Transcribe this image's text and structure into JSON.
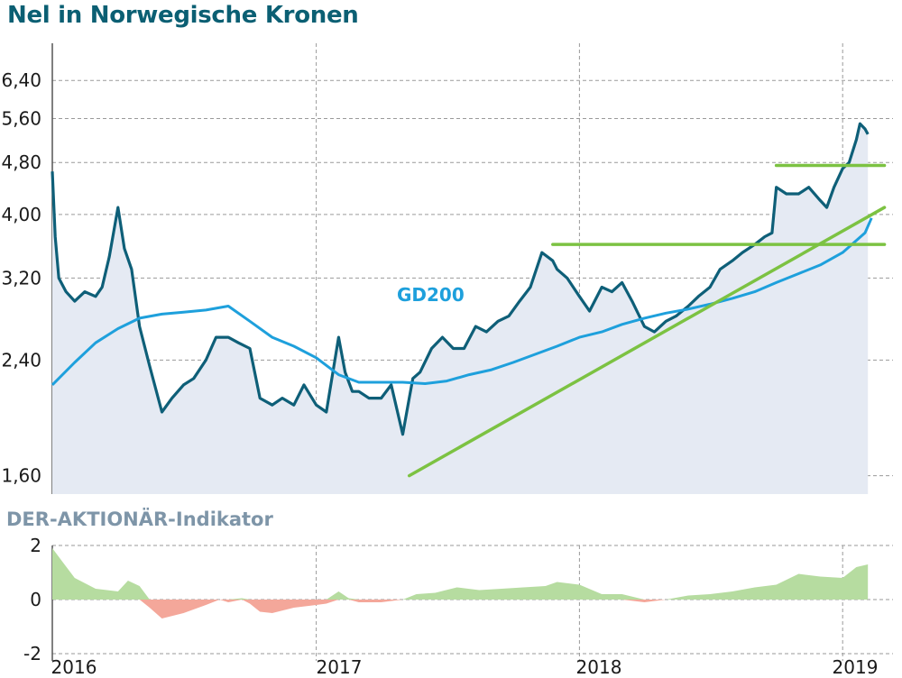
{
  "title": "Nel in Norwegische Kronen",
  "indicator_title": "DER-AKTIONÄR-Indikator",
  "colors": {
    "title": "#0b5f73",
    "price_line": "#0e5f78",
    "price_area": "#e5eaf3",
    "gd200": "#1ea0dc",
    "trend": "#7cc242",
    "indicator_positive": "#b6dca0",
    "indicator_negative": "#f4a79a",
    "grid": "#9a9a9a"
  },
  "chart_data": [
    {
      "type": "line",
      "title": "Nel in Norwegische Kronen",
      "y_scale": "log",
      "ylim": [
        1.5,
        7.2
      ],
      "xlim": [
        "2016-01-01",
        "2019-02-28"
      ],
      "yticks": [
        1.6,
        2.4,
        3.2,
        4.0,
        4.8,
        5.6,
        6.4
      ],
      "ytick_labels": [
        "1,60",
        "2,40",
        "3,20",
        "4,00",
        "4,80",
        "5,60",
        "6,40"
      ],
      "xtick_labels": [
        "2016",
        "2017",
        "2018",
        "2019"
      ],
      "grid": true,
      "annotations": [
        "GD200"
      ],
      "series": [
        {
          "name": "Nel",
          "x": [
            "2016-01-01",
            "2016-01-05",
            "2016-01-10",
            "2016-01-20",
            "2016-02-01",
            "2016-02-15",
            "2016-03-01",
            "2016-03-10",
            "2016-03-20",
            "2016-04-01",
            "2016-04-10",
            "2016-04-20",
            "2016-05-01",
            "2016-05-15",
            "2016-06-01",
            "2016-06-15",
            "2016-07-01",
            "2016-07-15",
            "2016-08-01",
            "2016-08-15",
            "2016-09-01",
            "2016-09-15",
            "2016-10-01",
            "2016-10-15",
            "2016-11-01",
            "2016-11-15",
            "2016-12-01",
            "2016-12-15",
            "2017-01-01",
            "2017-01-15",
            "2017-02-01",
            "2017-02-10",
            "2017-02-20",
            "2017-03-01",
            "2017-03-15",
            "2017-04-01",
            "2017-04-15",
            "2017-05-01",
            "2017-05-10",
            "2017-05-15",
            "2017-05-25",
            "2017-06-10",
            "2017-06-25",
            "2017-07-10",
            "2017-07-25",
            "2017-08-10",
            "2017-08-25",
            "2017-09-10",
            "2017-09-25",
            "2017-10-10",
            "2017-10-25",
            "2017-11-10",
            "2017-11-25",
            "2017-12-01",
            "2017-12-15",
            "2018-01-01",
            "2018-01-15",
            "2018-02-01",
            "2018-02-15",
            "2018-03-01",
            "2018-03-15",
            "2018-04-01",
            "2018-04-15",
            "2018-05-01",
            "2018-05-15",
            "2018-06-01",
            "2018-06-15",
            "2018-07-01",
            "2018-07-15",
            "2018-08-01",
            "2018-08-15",
            "2018-09-01",
            "2018-09-15",
            "2018-09-25",
            "2018-10-01",
            "2018-10-15",
            "2018-11-01",
            "2018-11-15",
            "2018-12-01",
            "2018-12-10",
            "2018-12-20",
            "2019-01-01",
            "2019-01-10",
            "2019-01-20",
            "2019-01-25",
            "2019-02-01",
            "2019-02-05"
          ],
          "values": [
            4.65,
            3.7,
            3.2,
            3.05,
            2.95,
            3.05,
            3.0,
            3.1,
            3.45,
            4.1,
            3.55,
            3.3,
            2.7,
            2.35,
            2.0,
            2.1,
            2.2,
            2.25,
            2.4,
            2.6,
            2.6,
            2.55,
            2.5,
            2.1,
            2.05,
            2.1,
            2.05,
            2.2,
            2.05,
            2.0,
            2.6,
            2.3,
            2.15,
            2.15,
            2.1,
            2.1,
            2.2,
            1.85,
            2.1,
            2.25,
            2.3,
            2.5,
            2.6,
            2.5,
            2.5,
            2.7,
            2.65,
            2.75,
            2.8,
            2.95,
            3.1,
            3.5,
            3.4,
            3.3,
            3.2,
            3.0,
            2.85,
            3.1,
            3.05,
            3.15,
            2.95,
            2.7,
            2.65,
            2.75,
            2.8,
            2.9,
            3.0,
            3.1,
            3.3,
            3.4,
            3.5,
            3.6,
            3.7,
            3.75,
            4.4,
            4.3,
            4.3,
            4.4,
            4.2,
            4.1,
            4.4,
            4.7,
            4.8,
            5.2,
            5.5,
            5.4,
            5.3
          ]
        },
        {
          "name": "GD200",
          "x": [
            "2016-01-01",
            "2016-02-01",
            "2016-03-01",
            "2016-04-01",
            "2016-05-01",
            "2016-06-01",
            "2016-07-01",
            "2016-08-01",
            "2016-09-01",
            "2016-10-01",
            "2016-11-01",
            "2016-12-01",
            "2017-01-01",
            "2017-02-01",
            "2017-03-01",
            "2017-04-01",
            "2017-05-01",
            "2017-06-01",
            "2017-07-01",
            "2017-08-01",
            "2017-09-01",
            "2017-10-01",
            "2017-11-01",
            "2017-12-01",
            "2018-01-01",
            "2018-02-01",
            "2018-03-01",
            "2018-04-01",
            "2018-05-01",
            "2018-06-01",
            "2018-07-01",
            "2018-08-01",
            "2018-09-01",
            "2018-10-01",
            "2018-11-01",
            "2018-12-01",
            "2019-01-01",
            "2019-02-01",
            "2019-02-10"
          ],
          "values": [
            2.2,
            2.38,
            2.55,
            2.68,
            2.78,
            2.82,
            2.84,
            2.86,
            2.9,
            2.75,
            2.6,
            2.52,
            2.42,
            2.28,
            2.22,
            2.22,
            2.22,
            2.21,
            2.23,
            2.28,
            2.32,
            2.38,
            2.45,
            2.52,
            2.6,
            2.65,
            2.72,
            2.78,
            2.83,
            2.87,
            2.92,
            2.98,
            3.05,
            3.15,
            3.25,
            3.35,
            3.5,
            3.75,
            3.95
          ]
        },
        {
          "name": "Trendlinie",
          "x": [
            "2017-05-10",
            "2019-02-28"
          ],
          "values": [
            1.6,
            4.1
          ]
        },
        {
          "name": "Widerstand 1",
          "x": [
            "2017-11-25",
            "2019-02-28"
          ],
          "values": [
            3.6,
            3.6
          ]
        },
        {
          "name": "Widerstand 2",
          "x": [
            "2018-10-01",
            "2019-02-28"
          ],
          "values": [
            4.75,
            4.75
          ]
        }
      ]
    },
    {
      "type": "area",
      "title": "DER-AKTIONÄR-Indikator",
      "ylim": [
        -2,
        2
      ],
      "yticks": [
        -2,
        0,
        2
      ],
      "ytick_labels": [
        "-2",
        "0",
        "2"
      ],
      "xtick_labels": [
        "2016",
        "2017",
        "2018",
        "2019"
      ],
      "grid": true,
      "series": [
        {
          "name": "Indikator",
          "x": [
            "2016-01-01",
            "2016-01-15",
            "2016-02-01",
            "2016-03-01",
            "2016-04-01",
            "2016-04-15",
            "2016-05-01",
            "2016-05-15",
            "2016-06-01",
            "2016-07-01",
            "2016-08-01",
            "2016-08-20",
            "2016-09-01",
            "2016-09-20",
            "2016-10-01",
            "2016-10-15",
            "2016-11-01",
            "2016-12-01",
            "2017-01-01",
            "2017-01-15",
            "2017-02-01",
            "2017-02-15",
            "2017-03-01",
            "2017-04-01",
            "2017-05-01",
            "2017-05-20",
            "2017-06-15",
            "2017-07-15",
            "2017-08-15",
            "2017-09-15",
            "2017-10-15",
            "2017-11-15",
            "2017-12-01",
            "2018-01-01",
            "2018-02-01",
            "2018-03-01",
            "2018-04-01",
            "2018-05-01",
            "2018-06-01",
            "2018-07-01",
            "2018-08-01",
            "2018-09-01",
            "2018-10-01",
            "2018-11-01",
            "2018-12-01",
            "2019-01-01",
            "2019-01-20",
            "2019-02-05"
          ],
          "values": [
            1.9,
            1.4,
            0.8,
            0.4,
            0.3,
            0.7,
            0.5,
            -0.3,
            -0.7,
            -0.5,
            -0.2,
            0,
            -0.1,
            0.05,
            -0.15,
            -0.45,
            -0.5,
            -0.3,
            -0.2,
            -0.15,
            0.3,
            0.05,
            -0.1,
            -0.1,
            0.0,
            0.2,
            0.25,
            0.45,
            0.35,
            0.4,
            0.45,
            0.5,
            0.65,
            0.55,
            0.2,
            0.2,
            -0.1,
            0.0,
            0.15,
            0.2,
            0.3,
            0.45,
            0.55,
            0.95,
            0.85,
            0.8,
            1.2,
            1.3
          ]
        }
      ]
    }
  ]
}
